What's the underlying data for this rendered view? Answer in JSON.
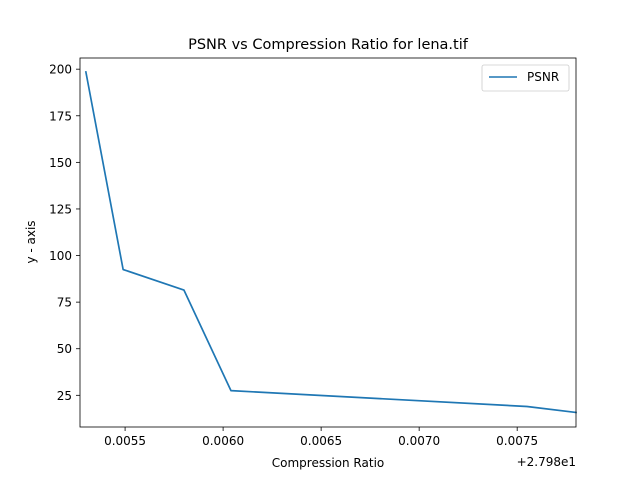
{
  "chart_data": {
    "type": "line",
    "title": "PSNR vs Compression Ratio for lena.tif",
    "xlabel": "Compression Ratio",
    "ylabel": "y - axis",
    "x_offset_label": "+2.798e1",
    "x_tick_labels": [
      "0.0055",
      "0.0060",
      "0.0065",
      "0.0070",
      "0.0075"
    ],
    "y_tick_labels": [
      "25",
      "50",
      "75",
      "100",
      "125",
      "150",
      "175",
      "200"
    ],
    "xlim": [
      0.00527,
      0.0078
    ],
    "ylim": [
      8,
      206
    ],
    "legend": "top-right",
    "grid": false,
    "series": [
      {
        "name": "PSNR",
        "color": "#1f77b4",
        "x": [
          0.0053,
          0.00549,
          0.0058,
          0.00604,
          0.00755,
          0.0078
        ],
        "y": [
          198.5,
          92.5,
          81.5,
          27.5,
          19.0,
          15.8
        ]
      }
    ]
  }
}
